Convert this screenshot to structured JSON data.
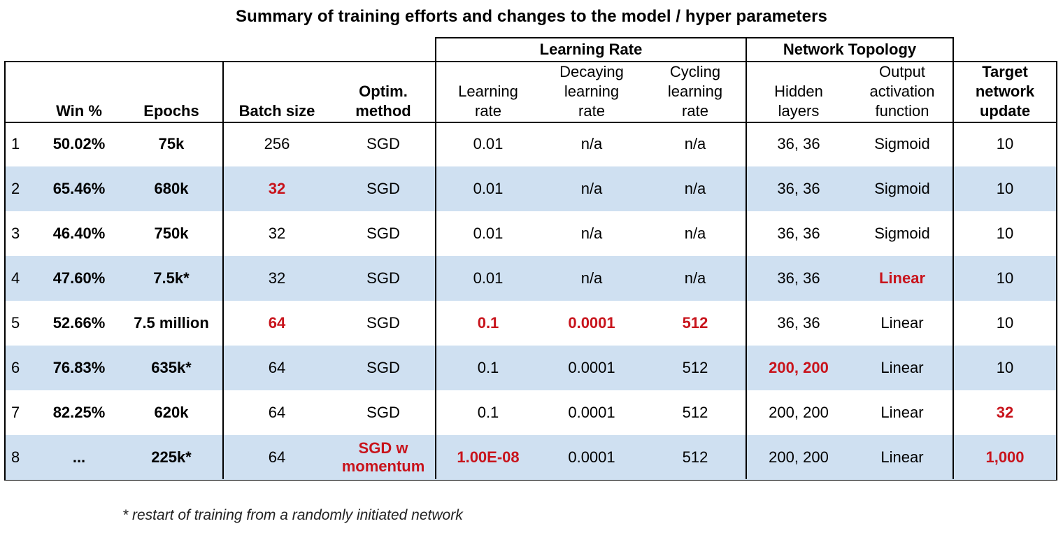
{
  "title": "Summary of training efforts and changes to the model / hyper parameters",
  "groups": {
    "learning_rate": "Learning Rate",
    "network_topology": "Network Topology"
  },
  "headers": {
    "win": "Win %",
    "epochs": "Epochs",
    "batch": "Batch size",
    "optim_1": "Optim.",
    "optim_2": "method",
    "lr_1": "Learning",
    "lr_2": "rate",
    "decay_1": "Decaying",
    "decay_2": "learning",
    "decay_3": "rate",
    "cycle_1": "Cycling",
    "cycle_2": "learning",
    "cycle_3": "rate",
    "hidden_1": "Hidden",
    "hidden_2": "layers",
    "out_1": "Output",
    "out_2": "activation",
    "out_3": "function",
    "target_1": "Target",
    "target_2": "network",
    "target_3": "update"
  },
  "rows": [
    {
      "num": "1",
      "win": "50.02%",
      "epochs": "75k",
      "batch": "256",
      "optim": "SGD",
      "lr": "0.01",
      "decay": "n/a",
      "cycle": "n/a",
      "hidden": "36, 36",
      "activation": "Sigmoid",
      "target": "10"
    },
    {
      "num": "2",
      "win": "65.46%",
      "epochs": "680k",
      "batch": "32",
      "optim": "SGD",
      "lr": "0.01",
      "decay": "n/a",
      "cycle": "n/a",
      "hidden": "36, 36",
      "activation": "Sigmoid",
      "target": "10"
    },
    {
      "num": "3",
      "win": "46.40%",
      "epochs": "750k",
      "batch": "32",
      "optim": "SGD",
      "lr": "0.01",
      "decay": "n/a",
      "cycle": "n/a",
      "hidden": "36, 36",
      "activation": "Sigmoid",
      "target": "10"
    },
    {
      "num": "4",
      "win": "47.60%",
      "epochs": "7.5k*",
      "batch": "32",
      "optim": "SGD",
      "lr": "0.01",
      "decay": "n/a",
      "cycle": "n/a",
      "hidden": "36, 36",
      "activation": "Linear",
      "target": "10"
    },
    {
      "num": "5",
      "win": "52.66%",
      "epochs": "7.5 million",
      "batch": "64",
      "optim": "SGD",
      "lr": "0.1",
      "decay": "0.0001",
      "cycle": "512",
      "hidden": "36, 36",
      "activation": "Linear",
      "target": "10"
    },
    {
      "num": "6",
      "win": "76.83%",
      "epochs": "635k*",
      "batch": "64",
      "optim": "SGD",
      "lr": "0.1",
      "decay": "0.0001",
      "cycle": "512",
      "hidden": "200, 200",
      "activation": "Linear",
      "target": "10"
    },
    {
      "num": "7",
      "win": "82.25%",
      "epochs": "620k",
      "batch": "64",
      "optim": "SGD",
      "lr": "0.1",
      "decay": "0.0001",
      "cycle": "512",
      "hidden": "200, 200",
      "activation": "Linear",
      "target": "32"
    },
    {
      "num": "8",
      "win": "...",
      "epochs": "225k*",
      "batch": "64",
      "optim": "SGD w momentum",
      "lr": "1.00E-08",
      "decay": "0.0001",
      "cycle": "512",
      "hidden": "200, 200",
      "activation": "Linear",
      "target": "1,000"
    }
  ],
  "highlight_color": "#c8141c",
  "row_shade_color": "#cfe0f1",
  "footnote": "* restart of training from a randomly initiated network"
}
